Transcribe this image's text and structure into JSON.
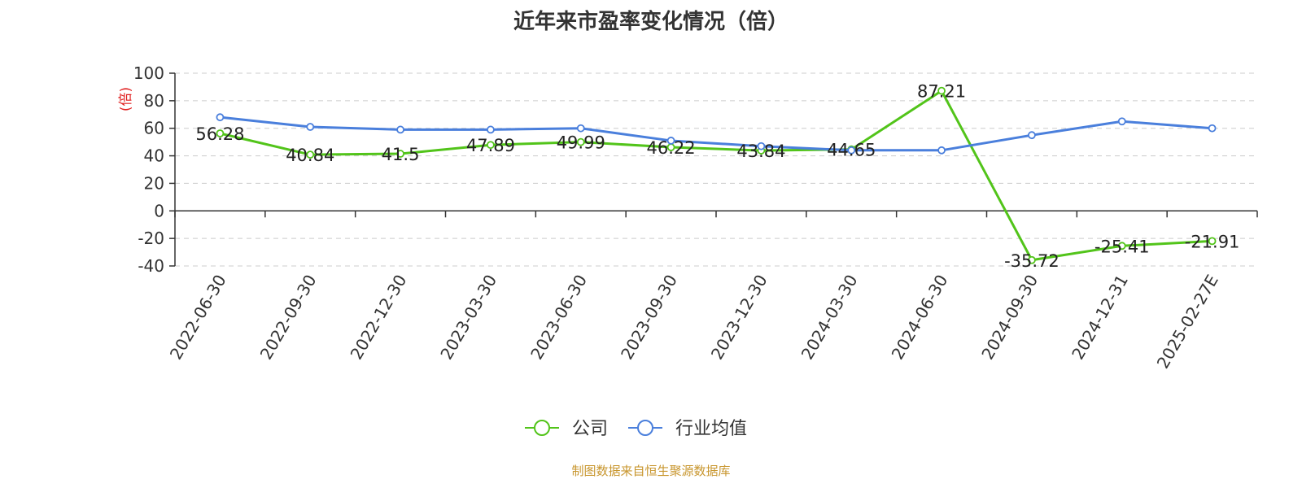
{
  "chart_data": {
    "type": "line",
    "title": "近年来市盈率变化情况（倍）",
    "ylabel": "(倍)",
    "xlabel": "",
    "categories": [
      "2022-06-30",
      "2022-09-30",
      "2022-12-30",
      "2023-03-30",
      "2023-06-30",
      "2023-09-30",
      "2023-12-30",
      "2024-03-30",
      "2024-06-30",
      "2024-09-30",
      "2024-12-31",
      "2025-02-27E"
    ],
    "y_ticks": [
      100,
      80,
      60,
      40,
      20,
      0,
      -20,
      -40
    ],
    "ylim": [
      -40,
      100
    ],
    "grid": true,
    "legend_position": "bottom",
    "series": [
      {
        "name": "公司",
        "color": "#52c41a",
        "values": [
          56.28,
          40.84,
          41.5,
          47.89,
          49.99,
          46.22,
          43.84,
          44.65,
          87.21,
          -35.72,
          -25.41,
          -21.91
        ],
        "labels": [
          "56.28",
          "40.84",
          "41.5",
          "47.89",
          "49.99",
          "46.22",
          "43.84",
          "44.65",
          "87.21",
          "-35.72",
          "-25.41",
          "-21.91"
        ]
      },
      {
        "name": "行业均值",
        "color": "#4a7fdc",
        "values": [
          68,
          61,
          59,
          59,
          60,
          51,
          47,
          44,
          44,
          55,
          65,
          60
        ]
      }
    ],
    "source": "制图数据来自恒生聚源数据库"
  }
}
